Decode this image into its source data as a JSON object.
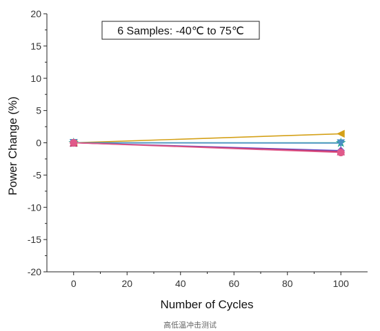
{
  "chart_data": {
    "type": "line",
    "xlabel": "Number of Cycles",
    "ylabel": "Power Change (%)",
    "xlim": [
      -10,
      110
    ],
    "ylim": [
      -20,
      20
    ],
    "x_ticks": [
      0,
      20,
      40,
      60,
      80,
      100
    ],
    "y_ticks": [
      20,
      15,
      10,
      5,
      0,
      -5,
      -10,
      -15,
      -20
    ],
    "annotation": "6 Samples: -40℃ to 75℃",
    "grid": false,
    "series": [
      {
        "x": [
          0,
          100
        ],
        "y": [
          0,
          1.4
        ],
        "color": "#d4a017",
        "marker": "triangle-left"
      },
      {
        "x": [
          0,
          100
        ],
        "y": [
          0,
          0.0
        ],
        "color": "#1aa38a",
        "marker": "star"
      },
      {
        "x": [
          0,
          100
        ],
        "y": [
          0,
          -0.05
        ],
        "color": "#4a8fc4",
        "marker": "triangle-down"
      },
      {
        "x": [
          0,
          100
        ],
        "y": [
          0,
          -1.2
        ],
        "color": "#6a5acd",
        "marker": "diamond"
      },
      {
        "x": [
          0,
          100
        ],
        "y": [
          0,
          -1.35
        ],
        "color": "#c0306a",
        "marker": "triangle-up"
      },
      {
        "x": [
          0,
          100
        ],
        "y": [
          0,
          -1.5
        ],
        "color": "#e05a8a",
        "marker": "circle"
      }
    ]
  },
  "caption": "高低温冲击测试"
}
